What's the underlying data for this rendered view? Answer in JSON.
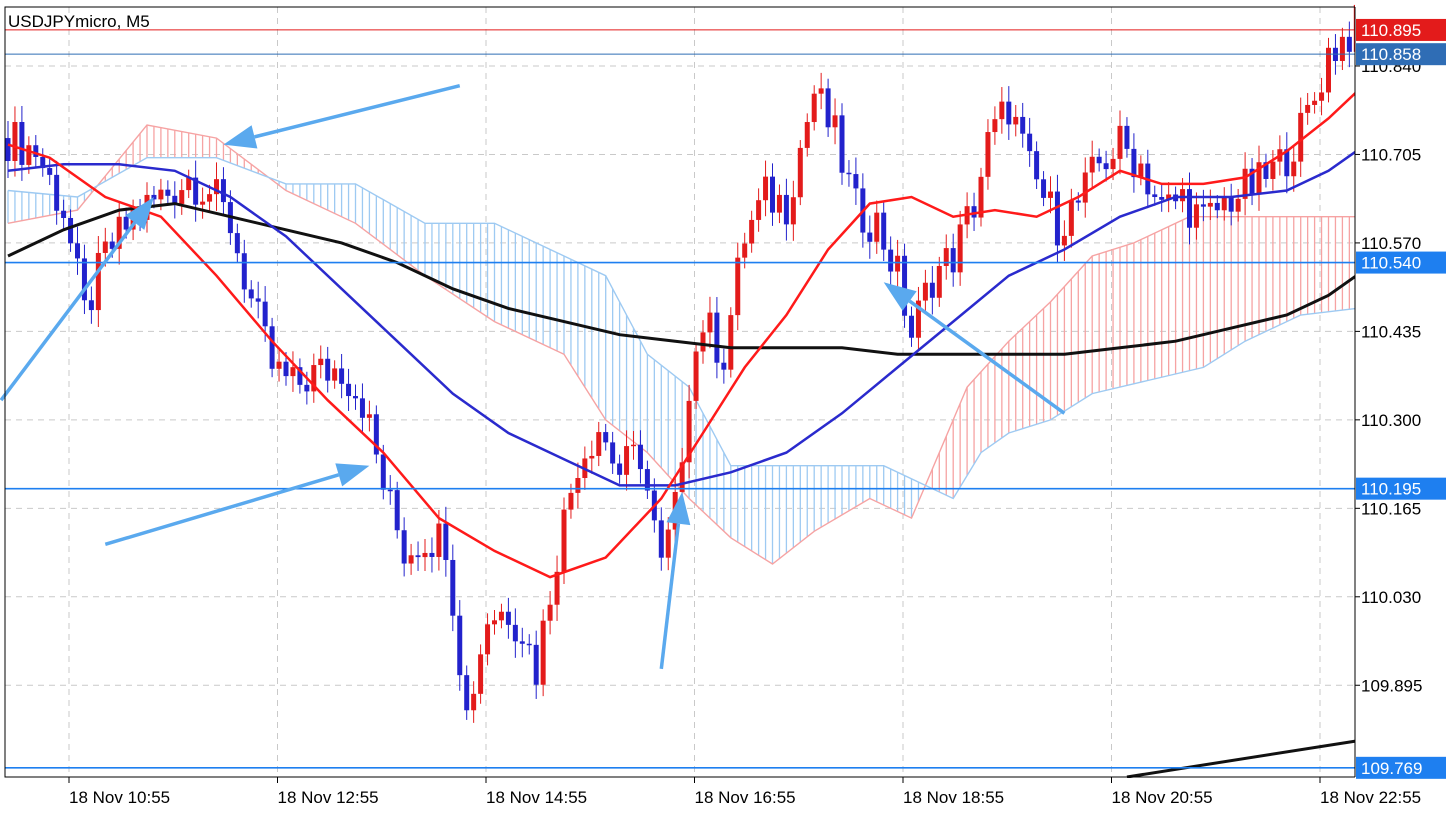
{
  "chart_title": "USDJPYmicro, M5",
  "colors": {
    "bull": "#e31b1b",
    "bear": "#2222cc",
    "ma_fast": "#ff1a1a",
    "ma_mid": "#2a2acd",
    "ma_slow": "#111111",
    "cloud_bull": "#f6a3a3",
    "cloud_bear": "#9ecaf2",
    "arrow": "#5aa9ee",
    "level": "#1e7ff0",
    "ask_line": "#e31b1b",
    "bid_line": "#2f6db5"
  },
  "chart_data": {
    "type": "candlestick",
    "symbol": "USDJPYmicro",
    "timeframe": "M5",
    "ylim": [
      109.755,
      110.93
    ],
    "y_ticks": [
      "110.840",
      "110.705",
      "110.570",
      "110.435",
      "110.300",
      "110.165",
      "110.030",
      "109.895"
    ],
    "x_ticks": [
      "18 Nov 10:55",
      "18 Nov 12:55",
      "18 Nov 14:55",
      "18 Nov 16:55",
      "18 Nov 18:55",
      "18 Nov 20:55",
      "18 Nov 22:55"
    ],
    "price_tags": [
      {
        "label": "110.895",
        "value": 110.895,
        "color": "#e31b1b"
      },
      {
        "label": "110.858",
        "value": 110.858,
        "color": "#2f6db5"
      },
      {
        "label": "110.540",
        "value": 110.54,
        "color": "#1e7ff0"
      },
      {
        "label": "110.195",
        "value": 110.195,
        "color": "#1e7ff0"
      },
      {
        "label": "109.769",
        "value": 109.769,
        "color": "#1e7ff0"
      }
    ],
    "horizontal_levels": [
      110.54,
      110.195,
      109.769
    ],
    "candle_anchors": [
      [
        0,
        110.73
      ],
      [
        4,
        110.71
      ],
      [
        8,
        110.62
      ],
      [
        11,
        110.46
      ],
      [
        14,
        110.55
      ],
      [
        18,
        110.61
      ],
      [
        22,
        110.64
      ],
      [
        26,
        110.67
      ],
      [
        29,
        110.65
      ],
      [
        32,
        110.6
      ],
      [
        35,
        110.48
      ],
      [
        38,
        110.38
      ],
      [
        41,
        110.35
      ],
      [
        44,
        110.37
      ],
      [
        48,
        110.38
      ],
      [
        51,
        110.33
      ],
      [
        54,
        110.2
      ],
      [
        57,
        110.1
      ],
      [
        60,
        110.12
      ],
      [
        63,
        110.12
      ],
      [
        66,
        109.85
      ],
      [
        69,
        110.0
      ],
      [
        72,
        110.01
      ],
      [
        74,
        109.98
      ],
      [
        76,
        109.92
      ],
      [
        79,
        110.1
      ],
      [
        82,
        110.24
      ],
      [
        85,
        110.29
      ],
      [
        88,
        110.22
      ],
      [
        91,
        110.25
      ],
      [
        94,
        110.07
      ],
      [
        96,
        110.16
      ],
      [
        98,
        110.36
      ],
      [
        100,
        110.45
      ],
      [
        103,
        110.4
      ],
      [
        106,
        110.58
      ],
      [
        109,
        110.64
      ],
      [
        112,
        110.63
      ],
      [
        116,
        110.8
      ],
      [
        119,
        110.73
      ],
      [
        122,
        110.62
      ],
      [
        125,
        110.6
      ],
      [
        128,
        110.52
      ],
      [
        130,
        110.43
      ],
      [
        133,
        110.52
      ],
      [
        136,
        110.55
      ],
      [
        139,
        110.63
      ],
      [
        141,
        110.72
      ],
      [
        144,
        110.78
      ],
      [
        147,
        110.68
      ],
      [
        151,
        110.6
      ],
      [
        154,
        110.63
      ],
      [
        157,
        110.69
      ],
      [
        160,
        110.72
      ],
      [
        163,
        110.69
      ],
      [
        166,
        110.62
      ],
      [
        169,
        110.64
      ],
      [
        172,
        110.6
      ],
      [
        176,
        110.64
      ],
      [
        180,
        110.66
      ],
      [
        183,
        110.69
      ],
      [
        186,
        110.74
      ],
      [
        188,
        110.79
      ],
      [
        190,
        110.86
      ],
      [
        192,
        110.88
      ],
      [
        194,
        110.9
      ]
    ],
    "ma_fast": [
      [
        0,
        110.72
      ],
      [
        6,
        110.7
      ],
      [
        14,
        110.64
      ],
      [
        22,
        110.61
      ],
      [
        30,
        110.52
      ],
      [
        38,
        110.42
      ],
      [
        46,
        110.33
      ],
      [
        54,
        110.25
      ],
      [
        62,
        110.15
      ],
      [
        70,
        110.1
      ],
      [
        78,
        110.06
      ],
      [
        86,
        110.09
      ],
      [
        94,
        110.18
      ],
      [
        100,
        110.28
      ],
      [
        106,
        110.38
      ],
      [
        112,
        110.46
      ],
      [
        118,
        110.56
      ],
      [
        124,
        110.63
      ],
      [
        130,
        110.64
      ],
      [
        136,
        110.61
      ],
      [
        142,
        110.62
      ],
      [
        148,
        110.61
      ],
      [
        154,
        110.64
      ],
      [
        160,
        110.68
      ],
      [
        166,
        110.66
      ],
      [
        172,
        110.66
      ],
      [
        178,
        110.67
      ],
      [
        184,
        110.71
      ],
      [
        190,
        110.76
      ],
      [
        194,
        110.8
      ]
    ],
    "ma_mid": [
      [
        0,
        110.68
      ],
      [
        8,
        110.69
      ],
      [
        16,
        110.69
      ],
      [
        24,
        110.68
      ],
      [
        32,
        110.64
      ],
      [
        40,
        110.58
      ],
      [
        48,
        110.5
      ],
      [
        56,
        110.42
      ],
      [
        64,
        110.34
      ],
      [
        72,
        110.28
      ],
      [
        80,
        110.24
      ],
      [
        88,
        110.2
      ],
      [
        96,
        110.2
      ],
      [
        104,
        110.22
      ],
      [
        112,
        110.25
      ],
      [
        120,
        110.31
      ],
      [
        128,
        110.38
      ],
      [
        136,
        110.45
      ],
      [
        144,
        110.52
      ],
      [
        152,
        110.56
      ],
      [
        160,
        110.61
      ],
      [
        168,
        110.64
      ],
      [
        176,
        110.64
      ],
      [
        184,
        110.65
      ],
      [
        190,
        110.68
      ],
      [
        194,
        110.71
      ]
    ],
    "ma_slow": [
      [
        0,
        110.55
      ],
      [
        8,
        110.59
      ],
      [
        16,
        110.62
      ],
      [
        24,
        110.63
      ],
      [
        32,
        110.61
      ],
      [
        40,
        110.59
      ],
      [
        48,
        110.57
      ],
      [
        56,
        110.54
      ],
      [
        64,
        110.5
      ],
      [
        72,
        110.47
      ],
      [
        80,
        110.45
      ],
      [
        88,
        110.43
      ],
      [
        96,
        110.42
      ],
      [
        104,
        110.41
      ],
      [
        112,
        110.41
      ],
      [
        120,
        110.41
      ],
      [
        128,
        110.4
      ],
      [
        136,
        110.4
      ],
      [
        144,
        110.4
      ],
      [
        152,
        110.4
      ],
      [
        160,
        110.41
      ],
      [
        168,
        110.42
      ],
      [
        176,
        110.44
      ],
      [
        184,
        110.46
      ],
      [
        190,
        110.49
      ],
      [
        194,
        110.52
      ]
    ],
    "cloud_span_a": [
      [
        0,
        110.6
      ],
      [
        10,
        110.62
      ],
      [
        20,
        110.75
      ],
      [
        30,
        110.73
      ],
      [
        40,
        110.65
      ],
      [
        50,
        110.6
      ],
      [
        60,
        110.52
      ],
      [
        70,
        110.45
      ],
      [
        80,
        110.4
      ],
      [
        86,
        110.3
      ],
      [
        92,
        110.25
      ],
      [
        98,
        110.18
      ],
      [
        104,
        110.12
      ],
      [
        110,
        110.08
      ],
      [
        116,
        110.13
      ],
      [
        124,
        110.18
      ],
      [
        130,
        110.15
      ],
      [
        134,
        110.25
      ],
      [
        138,
        110.35
      ],
      [
        144,
        110.42
      ],
      [
        150,
        110.48
      ],
      [
        156,
        110.55
      ],
      [
        162,
        110.57
      ],
      [
        170,
        110.61
      ],
      [
        178,
        110.61
      ],
      [
        186,
        110.61
      ],
      [
        194,
        110.61
      ]
    ],
    "cloud_span_b": [
      [
        0,
        110.65
      ],
      [
        10,
        110.64
      ],
      [
        20,
        110.7
      ],
      [
        30,
        110.7
      ],
      [
        40,
        110.66
      ],
      [
        50,
        110.66
      ],
      [
        60,
        110.6
      ],
      [
        70,
        110.6
      ],
      [
        80,
        110.55
      ],
      [
        86,
        110.52
      ],
      [
        92,
        110.4
      ],
      [
        98,
        110.35
      ],
      [
        104,
        110.23
      ],
      [
        112,
        110.23
      ],
      [
        120,
        110.23
      ],
      [
        126,
        110.23
      ],
      [
        132,
        110.2
      ],
      [
        136,
        110.18
      ],
      [
        140,
        110.25
      ],
      [
        144,
        110.28
      ],
      [
        150,
        110.3
      ],
      [
        156,
        110.34
      ],
      [
        164,
        110.36
      ],
      [
        172,
        110.38
      ],
      [
        178,
        110.42
      ],
      [
        186,
        110.46
      ],
      [
        194,
        110.47
      ]
    ],
    "annotation_arrows": [
      {
        "from": [
          -1,
          110.33
        ],
        "to": [
          21,
          110.64
        ]
      },
      {
        "from": [
          65,
          110.81
        ],
        "to": [
          31,
          110.72
        ]
      },
      {
        "from": [
          14,
          110.11
        ],
        "to": [
          52,
          110.23
        ]
      },
      {
        "from": [
          94,
          109.92
        ],
        "to": [
          97,
          110.19
        ]
      },
      {
        "from": [
          152,
          110.31
        ],
        "to": [
          126,
          110.51
        ]
      }
    ],
    "trend_line": {
      "from": [
        161,
        109.755
      ],
      "to": [
        194,
        109.81
      ]
    }
  }
}
